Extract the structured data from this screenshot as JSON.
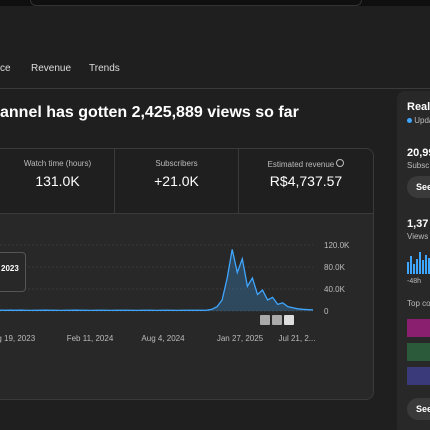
{
  "tabs": [
    "ce",
    "Revenue",
    "Trends"
  ],
  "headline": "annel has gotten 2,425,889 views so far",
  "metrics": [
    {
      "label": "Watch time (hours)",
      "value": "131.0K"
    },
    {
      "label": "Subscribers",
      "value": "+21.0K"
    },
    {
      "label": "Estimated revenue",
      "value": "R$4,737.57"
    }
  ],
  "chart": {
    "ylim": [
      0,
      120000
    ],
    "yticks": [
      {
        "value": 120000,
        "label": "120.0K"
      },
      {
        "value": 80000,
        "label": "80.0K"
      },
      {
        "value": 40000,
        "label": "40.0K"
      },
      0
    ],
    "xlabels": [
      "ug 19, 2023",
      "Feb 11, 2024",
      "Aug 4, 2024",
      "Jan 27, 2025",
      "Jul 21, 2..."
    ],
    "values": [
      1500,
      1200,
      1400,
      1300,
      1500,
      1200,
      1100,
      1300,
      1200,
      1400,
      1300,
      1200,
      1100,
      1300,
      1200,
      1400,
      1300,
      1200,
      1100,
      1200,
      1300,
      1200,
      1100,
      1300,
      1200,
      1300,
      1200,
      1100,
      1200,
      1300,
      1200,
      1100,
      1300,
      1200,
      1200,
      1100,
      1300,
      1200,
      1200,
      1300,
      1200,
      1500,
      3000,
      8000,
      20000,
      60000,
      112000,
      70000,
      95000,
      45000,
      60000,
      30000,
      38000,
      20000,
      25000,
      12000,
      15000,
      8000,
      6000,
      4000,
      3000,
      2500,
      2000
    ],
    "tooltip": "2023"
  },
  "realtime": {
    "title": "Realt",
    "update": "Upda",
    "subs": "20,99",
    "subs_label": "Subsc",
    "see1": "See",
    "views": "1,37",
    "views_label": "Views",
    "axis_label": "-48h",
    "bars": [
      12,
      18,
      10,
      15,
      22,
      14,
      19,
      16,
      24,
      20,
      13
    ],
    "top": "Top co",
    "see2": "See"
  }
}
